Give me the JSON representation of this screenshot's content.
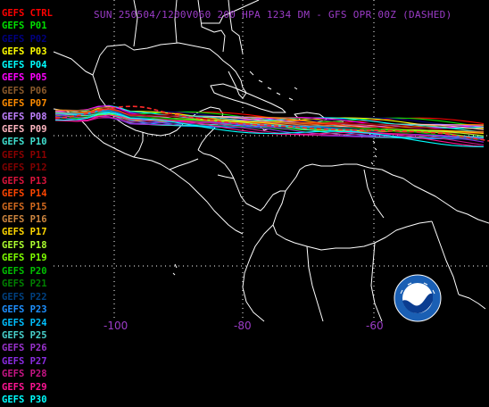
{
  "title": "SUN 250504/1200V060  200 HPA 1234 DM - GFS OPR 00Z (DASHED)",
  "legend": [
    {
      "label": "GEFS CTRL",
      "color": "#ff0000"
    },
    {
      "label": "GEFS P01",
      "color": "#00e000"
    },
    {
      "label": "GEFS P02",
      "color": "#000080"
    },
    {
      "label": "GEFS P03",
      "color": "#ffff00"
    },
    {
      "label": "GEFS P04",
      "color": "#00ffff"
    },
    {
      "label": "GEFS P05",
      "color": "#ff00ff"
    },
    {
      "label": "GEFS P06",
      "color": "#8b5a2b"
    },
    {
      "label": "GEFS P07",
      "color": "#ff8c00"
    },
    {
      "label": "GEFS P08",
      "color": "#c080ff"
    },
    {
      "label": "GEFS P09",
      "color": "#ffb6c1"
    },
    {
      "label": "GEFS P10",
      "color": "#40e0d0"
    },
    {
      "label": "GEFS P11",
      "color": "#8b0000"
    },
    {
      "label": "GEFS P12",
      "color": "#800000"
    },
    {
      "label": "GEFS P13",
      "color": "#dc143c"
    },
    {
      "label": "GEFS P14",
      "color": "#ff4500"
    },
    {
      "label": "GEFS P15",
      "color": "#d2691e"
    },
    {
      "label": "GEFS P16",
      "color": "#cd853f"
    },
    {
      "label": "GEFS P17",
      "color": "#ffd700"
    },
    {
      "label": "GEFS P18",
      "color": "#adff2f"
    },
    {
      "label": "GEFS P19",
      "color": "#7fff00"
    },
    {
      "label": "GEFS P20",
      "color": "#00c000"
    },
    {
      "label": "GEFS P21",
      "color": "#008000"
    },
    {
      "label": "GEFS P22",
      "color": "#004080"
    },
    {
      "label": "GEFS P23",
      "color": "#1e90ff"
    },
    {
      "label": "GEFS P24",
      "color": "#00bfff"
    },
    {
      "label": "GEFS P25",
      "color": "#48d1cc"
    },
    {
      "label": "GEFS P26",
      "color": "#9932cc"
    },
    {
      "label": "GEFS P27",
      "color": "#8a2be2"
    },
    {
      "label": "GEFS P28",
      "color": "#c71585"
    },
    {
      "label": "GEFS P29",
      "color": "#ff1493"
    },
    {
      "label": "GEFS P30",
      "color": "#00ffff"
    }
  ],
  "longitude_labels": [
    {
      "text": "-100",
      "lon": -100
    },
    {
      "text": "-80",
      "lon": -80
    },
    {
      "text": "-60",
      "lon": -60
    }
  ],
  "colors": {
    "background": "#000000",
    "coastline": "#ffffff",
    "grid": "#ffffff",
    "title": "#9b3cc7"
  },
  "logo_text": "NOAA"
}
